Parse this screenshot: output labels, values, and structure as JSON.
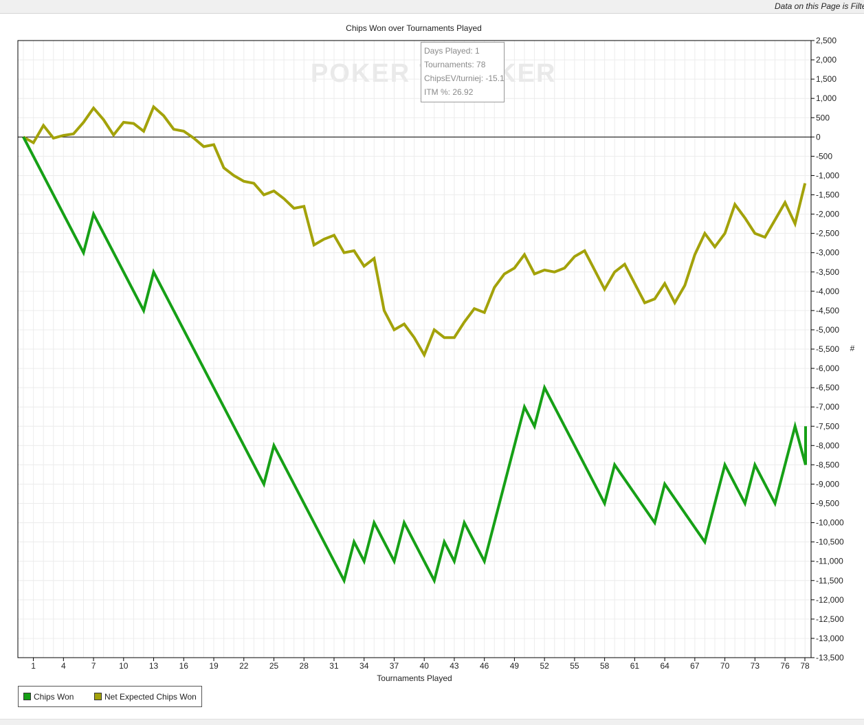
{
  "header": {
    "filter_note": "Data on this Page is Filte"
  },
  "chart_data": {
    "type": "line",
    "title": "Chips Won over Tournaments Played",
    "xlabel": "Tournaments Played",
    "ylabel": "#",
    "xlim": [
      0,
      78
    ],
    "ylim": [
      -13500,
      2500
    ],
    "x_ticks": [
      "1",
      "4",
      "7",
      "10",
      "13",
      "16",
      "19",
      "22",
      "25",
      "28",
      "31",
      "34",
      "37",
      "40",
      "43",
      "46",
      "49",
      "52",
      "55",
      "58",
      "61",
      "64",
      "67",
      "70",
      "73",
      "76",
      "78"
    ],
    "y_ticks": [
      "2,500",
      "2,000",
      "1,500",
      "1,000",
      "500",
      "0",
      "-500",
      "-1,000",
      "-1,500",
      "-2,000",
      "-2,500",
      "-3,000",
      "-3,500",
      "-4,000",
      "-4,500",
      "-5,000",
      "-5,500",
      "-6,000",
      "-6,500",
      "-7,000",
      "-7,500",
      "-8,000",
      "-8,500",
      "-9,000",
      "-9,500",
      "-10,000",
      "-10,500",
      "-11,000",
      "-11,500",
      "-12,000",
      "-12,500",
      "-13,000",
      "-13,500"
    ],
    "grid": true,
    "legend_position": "bottom-left",
    "series": [
      {
        "name": "Chips Won",
        "color": "#16a016",
        "points": [
          [
            0,
            0
          ],
          [
            6,
            -3000
          ],
          [
            7,
            -2000
          ],
          [
            12,
            -4500
          ],
          [
            13,
            -3500
          ],
          [
            24,
            -9000
          ],
          [
            25,
            -8000
          ],
          [
            32,
            -11500
          ],
          [
            33,
            -10500
          ],
          [
            34,
            -11000
          ],
          [
            35,
            -10000
          ],
          [
            37,
            -11000
          ],
          [
            38,
            -10000
          ],
          [
            41,
            -11500
          ],
          [
            42,
            -10500
          ],
          [
            43,
            -11000
          ],
          [
            44,
            -10000
          ],
          [
            46,
            -11000
          ],
          [
            50,
            -7000
          ],
          [
            51,
            -7500
          ],
          [
            52,
            -6500
          ],
          [
            58,
            -9500
          ],
          [
            59,
            -8500
          ],
          [
            63,
            -10000
          ],
          [
            64,
            -9000
          ],
          [
            68,
            -10500
          ],
          [
            70,
            -8500
          ],
          [
            72,
            -9500
          ],
          [
            73,
            -8500
          ],
          [
            75,
            -9500
          ],
          [
            77,
            -7500
          ],
          [
            79,
            -8500
          ],
          [
            79.8,
            -7500
          ]
        ]
      },
      {
        "name": "Net Expected Chips Won",
        "color": "#a3a20a",
        "points": [
          [
            0,
            0
          ],
          [
            1,
            -150
          ],
          [
            2,
            300
          ],
          [
            3,
            -30
          ],
          [
            4,
            40
          ],
          [
            5,
            80
          ],
          [
            6,
            380
          ],
          [
            7,
            750
          ],
          [
            8,
            450
          ],
          [
            9,
            50
          ],
          [
            10,
            380
          ],
          [
            11,
            350
          ],
          [
            12,
            150
          ],
          [
            13,
            780
          ],
          [
            14,
            550
          ],
          [
            15,
            200
          ],
          [
            16,
            150
          ],
          [
            17,
            -30
          ],
          [
            18,
            -250
          ],
          [
            19,
            -200
          ],
          [
            20,
            -800
          ],
          [
            21,
            -1000
          ],
          [
            22,
            -1150
          ],
          [
            23,
            -1200
          ],
          [
            24,
            -1500
          ],
          [
            25,
            -1400
          ],
          [
            26,
            -1600
          ],
          [
            27,
            -1850
          ],
          [
            28,
            -1800
          ],
          [
            29,
            -2800
          ],
          [
            30,
            -2650
          ],
          [
            31,
            -2550
          ],
          [
            32,
            -3000
          ],
          [
            33,
            -2950
          ],
          [
            34,
            -3350
          ],
          [
            35,
            -3150
          ],
          [
            36,
            -4500
          ],
          [
            37,
            -5000
          ],
          [
            38,
            -4850
          ],
          [
            39,
            -5200
          ],
          [
            40,
            -5650
          ],
          [
            41,
            -5000
          ],
          [
            42,
            -5200
          ],
          [
            43,
            -5200
          ],
          [
            44,
            -4800
          ],
          [
            45,
            -4450
          ],
          [
            46,
            -4550
          ],
          [
            47,
            -3900
          ],
          [
            48,
            -3550
          ],
          [
            49,
            -3400
          ],
          [
            50,
            -3050
          ],
          [
            51,
            -3550
          ],
          [
            52,
            -3450
          ],
          [
            53,
            -3500
          ],
          [
            54,
            -3400
          ],
          [
            55,
            -3100
          ],
          [
            56,
            -2950
          ],
          [
            57,
            -3450
          ],
          [
            58,
            -3950
          ],
          [
            59,
            -3500
          ],
          [
            60,
            -3300
          ],
          [
            61,
            -3800
          ],
          [
            62,
            -4300
          ],
          [
            63,
            -4200
          ],
          [
            64,
            -3800
          ],
          [
            65,
            -4300
          ],
          [
            66,
            -3850
          ],
          [
            67,
            -3050
          ],
          [
            68,
            -2500
          ],
          [
            69,
            -2850
          ],
          [
            70,
            -2500
          ],
          [
            71,
            -1750
          ],
          [
            72,
            -2100
          ],
          [
            73,
            -2500
          ],
          [
            74,
            -2600
          ],
          [
            75,
            -2150
          ],
          [
            76,
            -1700
          ],
          [
            77,
            -2250
          ],
          [
            78,
            -1200
          ]
        ]
      }
    ]
  },
  "tooltip": {
    "lines": [
      "Days Played: 1",
      "Tournaments: 78",
      "ChipsEV/turniej: -15.1",
      "ITM %: 26.92"
    ]
  },
  "watermark": "POKER TRACKER",
  "colors": {
    "grid": "#ececec",
    "axis": "#000000"
  }
}
